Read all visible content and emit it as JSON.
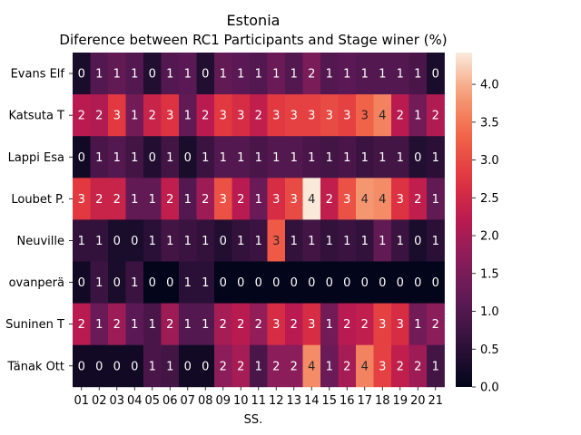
{
  "chart_data": {
    "type": "heatmap",
    "title": "Estonia",
    "subtitle": "Diference between RC1 Participants and Stage winer (%)",
    "xlabel": "SS.",
    "ylabel": "",
    "x": [
      "01",
      "02",
      "03",
      "04",
      "05",
      "06",
      "07",
      "08",
      "09",
      "10",
      "11",
      "12",
      "13",
      "14",
      "15",
      "16",
      "17",
      "18",
      "19",
      "20",
      "21"
    ],
    "y": [
      "Evans  Elf",
      "Katsuta  T",
      "Lappi  Esa",
      "Loubet  P.",
      "Neuville",
      "ovanperä",
      "Suninen  T",
      "Tänak  Ott"
    ],
    "values": [
      [
        0.3,
        1.0,
        1.2,
        1.0,
        0.4,
        1.0,
        1.1,
        0.4,
        1.2,
        1.1,
        1.0,
        1.3,
        1.0,
        1.5,
        1.0,
        1.1,
        1.0,
        1.0,
        1.0,
        0.9,
        0.3
      ],
      [
        2.2,
        2.1,
        2.8,
        1.4,
        2.4,
        2.7,
        1.2,
        2.2,
        2.8,
        2.6,
        2.3,
        2.8,
        2.9,
        2.9,
        3.0,
        2.9,
        3.3,
        3.6,
        2.2,
        1.4,
        2.1
      ],
      [
        0.2,
        0.9,
        1.0,
        0.8,
        0.4,
        0.8,
        0.3,
        0.7,
        1.0,
        1.0,
        0.9,
        1.0,
        1.0,
        0.9,
        0.8,
        0.9,
        0.7,
        0.8,
        0.8,
        0.4,
        0.5
      ],
      [
        2.8,
        2.4,
        2.4,
        1.2,
        1.2,
        2.3,
        1.0,
        1.9,
        3.1,
        2.2,
        1.3,
        2.6,
        3.0,
        4.4,
        2.3,
        3.1,
        3.8,
        3.7,
        2.7,
        2.3,
        1.2
      ],
      [
        0.6,
        0.6,
        0.3,
        0.3,
        0.5,
        0.8,
        0.7,
        0.6,
        0.4,
        0.6,
        0.7,
        3.2,
        0.6,
        0.8,
        0.6,
        0.7,
        0.6,
        1.2,
        0.7,
        0.3,
        0.5
      ],
      [
        0.2,
        0.7,
        0.3,
        0.7,
        0.0,
        0.0,
        0.5,
        0.5,
        0.0,
        0.0,
        0.0,
        0.0,
        0.0,
        0.0,
        0.0,
        0.0,
        0.0,
        0.0,
        0.0,
        0.0,
        0.0
      ],
      [
        2.2,
        1.3,
        1.9,
        1.1,
        0.9,
        1.9,
        1.0,
        1.0,
        2.0,
        2.2,
        1.8,
        2.6,
        2.2,
        2.6,
        1.4,
        2.2,
        2.3,
        2.9,
        2.6,
        1.4,
        1.7
      ],
      [
        0.2,
        0.2,
        0.2,
        0.2,
        0.9,
        0.8,
        0.2,
        0.2,
        1.7,
        2.0,
        0.9,
        1.7,
        1.7,
        3.7,
        1.3,
        2.0,
        3.6,
        2.9,
        2.3,
        1.9,
        0.8
      ]
    ],
    "annotations": [
      [
        "0",
        "1",
        "1",
        "1",
        "0",
        "1",
        "1",
        "0",
        "1",
        "1",
        "1",
        "1",
        "1",
        "2",
        "1",
        "1",
        "1",
        "1",
        "1",
        "1",
        "0"
      ],
      [
        "2",
        "2",
        "3",
        "1",
        "2",
        "3",
        "1",
        "2",
        "3",
        "3",
        "2",
        "3",
        "3",
        "3",
        "3",
        "3",
        "3",
        "4",
        "2",
        "1",
        "2"
      ],
      [
        "0",
        "1",
        "1",
        "1",
        "0",
        "1",
        "0",
        "1",
        "1",
        "1",
        "1",
        "1",
        "1",
        "1",
        "1",
        "1",
        "1",
        "1",
        "1",
        "0",
        "1"
      ],
      [
        "3",
        "2",
        "2",
        "1",
        "1",
        "2",
        "1",
        "2",
        "3",
        "2",
        "1",
        "3",
        "3",
        "4",
        "2",
        "3",
        "4",
        "4",
        "3",
        "2",
        "1"
      ],
      [
        "1",
        "1",
        "0",
        "0",
        "1",
        "1",
        "1",
        "1",
        "0",
        "1",
        "1",
        "3",
        "1",
        "1",
        "1",
        "1",
        "1",
        "1",
        "1",
        "0",
        "1"
      ],
      [
        "0",
        "1",
        "0",
        "1",
        "0",
        "0",
        "1",
        "1",
        "0",
        "0",
        "0",
        "0",
        "0",
        "0",
        "0",
        "0",
        "0",
        "0",
        "0",
        "0",
        "0"
      ],
      [
        "2",
        "1",
        "2",
        "1",
        "1",
        "2",
        "1",
        "1",
        "2",
        "2",
        "2",
        "3",
        "2",
        "3",
        "1",
        "2",
        "2",
        "3",
        "3",
        "1",
        "2"
      ],
      [
        "0",
        "0",
        "0",
        "0",
        "1",
        "1",
        "0",
        "0",
        "2",
        "2",
        "1",
        "2",
        "2",
        "4",
        "1",
        "2",
        "4",
        "3",
        "2",
        "2",
        "1"
      ]
    ],
    "colorbar": {
      "ticks": [
        "0.0",
        "0.5",
        "1.0",
        "1.5",
        "2.0",
        "2.5",
        "3.0",
        "3.5",
        "4.0"
      ],
      "range": [
        0,
        4.42
      ],
      "colormap": "rocket"
    },
    "grid": false,
    "legend": "colorbar-right"
  }
}
